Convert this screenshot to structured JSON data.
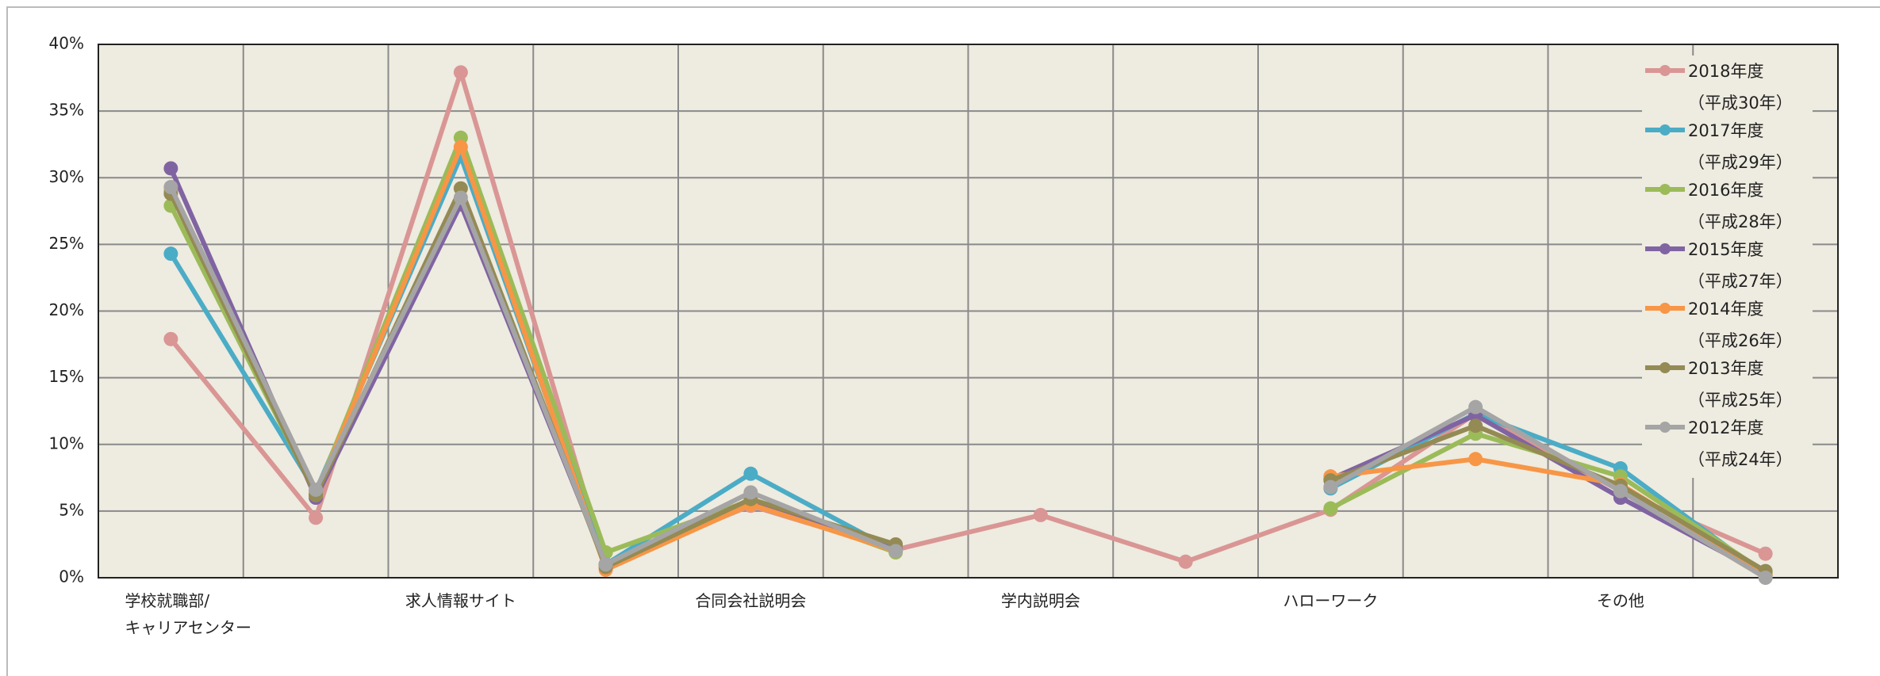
{
  "chart_data": {
    "type": "line",
    "categories": [
      "学校就職部/\nキャリアセンター",
      null,
      "求人情報サイト",
      null,
      "合同会社説明会",
      null,
      "学内説明会",
      null,
      "ハローワーク",
      null,
      "その他",
      null
    ],
    "ylim": [
      0,
      40
    ],
    "yticks": [
      {
        "value": 0,
        "label": "0%"
      },
      {
        "value": 5,
        "label": "5%"
      },
      {
        "value": 10,
        "label": "10%"
      },
      {
        "value": 15,
        "label": "15%"
      },
      {
        "value": 20,
        "label": "20%"
      },
      {
        "value": 25,
        "label": "25%"
      },
      {
        "value": 30,
        "label": "30%"
      },
      {
        "value": 35,
        "label": "35%"
      },
      {
        "value": 40,
        "label": "40%"
      }
    ],
    "grid": true,
    "legend": "upper right",
    "series": [
      {
        "name": "2018年度\n（平成30年）",
        "color": "#d99694",
        "values": [
          17.9,
          4.5,
          37.9,
          1.0,
          5.4,
          2.1,
          4.7,
          1.2,
          5.1,
          12.3,
          6.5,
          1.8
        ]
      },
      {
        "name": "2017年度\n（平成29年）",
        "color": "#4bacc6",
        "values": [
          24.3,
          6.5,
          31.6,
          1.0,
          7.8,
          2.0,
          null,
          null,
          6.7,
          12.3,
          8.2,
          0.2
        ]
      },
      {
        "name": "2016年度\n（平成28年）",
        "color": "#9bbb59",
        "values": [
          27.9,
          6.3,
          33.0,
          1.9,
          5.8,
          1.9,
          null,
          null,
          5.2,
          10.8,
          7.6,
          0.4
        ]
      },
      {
        "name": "2015年度\n（平成27年）",
        "color": "#8064a2",
        "values": [
          30.7,
          6.0,
          28.0,
          1.0,
          5.8,
          2.1,
          null,
          null,
          7.4,
          12.2,
          6.0,
          0.2
        ]
      },
      {
        "name": "2014年度\n（平成26年）",
        "color": "#f79646",
        "values": [
          29.0,
          6.2,
          32.3,
          0.6,
          5.5,
          2.0,
          null,
          null,
          7.6,
          8.9,
          7.0,
          0.3
        ]
      },
      {
        "name": "2013年度\n（平成25年）",
        "color": "#948a54",
        "values": [
          28.8,
          6.2,
          29.2,
          0.8,
          5.9,
          2.5,
          null,
          null,
          7.3,
          11.4,
          6.9,
          0.5
        ]
      },
      {
        "name": "2012年度\n（平成24年）",
        "color": "#a5a5a5",
        "values": [
          29.3,
          6.6,
          28.5,
          1.0,
          6.4,
          2.0,
          null,
          null,
          6.8,
          12.8,
          6.5,
          0.0
        ]
      }
    ]
  }
}
